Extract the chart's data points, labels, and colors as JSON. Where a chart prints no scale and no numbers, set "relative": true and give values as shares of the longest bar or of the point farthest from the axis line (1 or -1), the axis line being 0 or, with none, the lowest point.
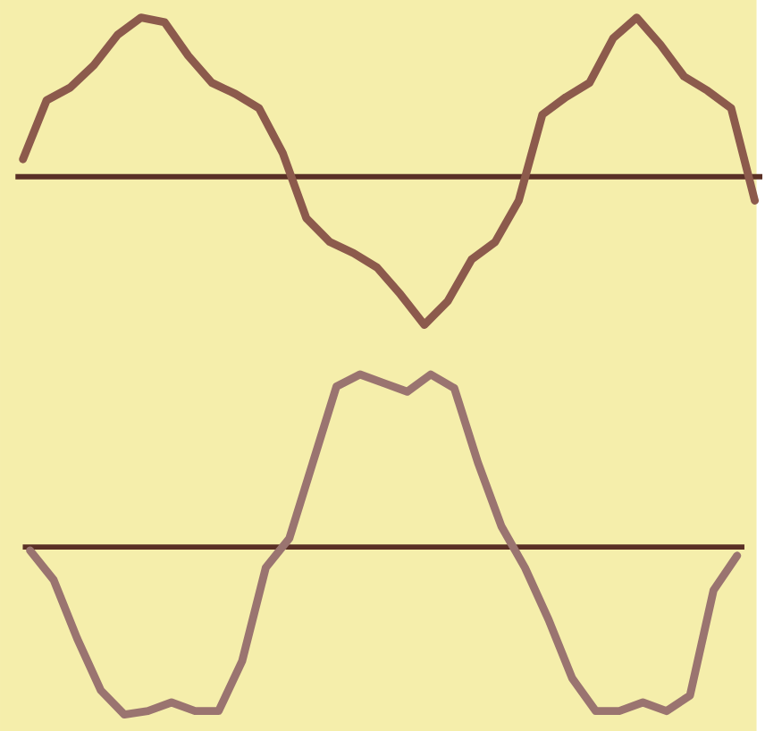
{
  "chart_data": [
    {
      "type": "line",
      "relative": true,
      "categories": [
        null,
        null,
        null,
        null,
        null,
        null,
        null,
        null,
        null,
        null,
        null,
        null,
        null,
        null,
        null,
        null,
        null,
        null,
        null,
        null,
        null,
        null,
        null,
        null,
        null,
        null,
        null,
        null,
        null,
        null,
        null,
        null
      ],
      "series": [
        {
          "color": "#8c5a4c",
          "values": [
            0.11,
            0.48,
            0.56,
            0.7,
            0.89,
            1.0,
            0.97,
            0.76,
            0.59,
            0.52,
            0.43,
            0.15,
            -0.26,
            -0.41,
            -0.48,
            -0.57,
            -0.74,
            -0.93,
            -0.78,
            -0.52,
            -0.41,
            -0.15,
            0.39,
            0.5,
            0.59,
            0.87,
            1.0,
            0.83,
            0.63,
            0.54,
            0.43,
            -0.15
          ]
        }
      ]
    },
    {
      "type": "line",
      "relative": true,
      "categories": [
        null,
        null,
        null,
        null,
        null,
        null,
        null,
        null,
        null,
        null,
        null,
        null,
        null,
        null,
        null,
        null,
        null,
        null,
        null,
        null,
        null,
        null,
        null,
        null,
        null,
        null,
        null,
        null,
        null,
        null,
        null
      ],
      "series": [
        {
          "color": "#9a7470",
          "values": [
            -0.02,
            -0.19,
            -0.53,
            -0.83,
            -0.97,
            -0.95,
            -0.9,
            -0.95,
            -0.95,
            -0.66,
            -0.12,
            0.05,
            0.49,
            0.93,
            1.0,
            0.95,
            0.9,
            1.0,
            0.92,
            0.49,
            0.12,
            -0.12,
            -0.42,
            -0.76,
            -0.95,
            -0.95,
            -0.9,
            -0.95,
            -0.86,
            -0.25,
            -0.05
          ]
        }
      ]
    }
  ]
}
